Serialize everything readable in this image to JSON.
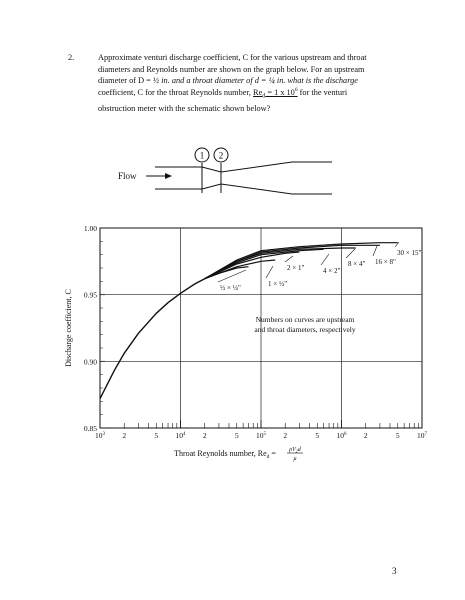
{
  "problem": {
    "number": "2.",
    "line1": "Approximate venturi discharge coefficient, C for the various upstream and throat",
    "line2": "diameters and Reynolds number are shown on the graph below.  For an upstream",
    "line3a": "diameter of D = ",
    "D_value": "½",
    "line3b": " in. and a throat diameter of d = ",
    "d_value": "¼",
    "line3c": " in. what is the discharge",
    "line4a": "coefficient, C for the throat Reynolds number, ",
    "Re_text": "Re",
    "Re_sub": "d",
    "Re_eq": " = 1 x 10",
    "Re_exp": "6",
    "line4b": " for the venturi",
    "line5": "obstruction meter with the schematic shown below?"
  },
  "schematic": {
    "flow_label": "Flow",
    "station1": "1",
    "station2": "2"
  },
  "chart_data": {
    "type": "line",
    "xscale": "log",
    "xlim": [
      1000,
      10000000
    ],
    "ylim": [
      0.85,
      1.0
    ],
    "ylabel": "Discharge coefficient, C",
    "xlabel": "Throat Reynolds number, Re",
    "xlabel_sub": "d",
    "xlabel_eq": " = ",
    "xlabel_numer": "ρV",
    "xlabel_numer_sub": "2",
    "xlabel_numer_tail": "d",
    "xlabel_denom": "μ",
    "y_ticks": [
      "0.85",
      "0.90",
      "0.95",
      "1.00"
    ],
    "x_ticks_major": [
      {
        "value": 1000,
        "base": "10",
        "exp": "3"
      },
      {
        "value": 10000,
        "base": "10",
        "exp": "4"
      },
      {
        "value": 100000,
        "base": "10",
        "exp": "5"
      },
      {
        "value": 1000000,
        "base": "10",
        "exp": "6"
      },
      {
        "value": 10000000,
        "base": "10",
        "exp": "7"
      }
    ],
    "x_ticks_minor_labeled": [
      {
        "value": 2000,
        "label": "2"
      },
      {
        "value": 5000,
        "label": "5"
      },
      {
        "value": 20000,
        "label": "2"
      },
      {
        "value": 50000,
        "label": "5"
      },
      {
        "value": 200000,
        "label": "2"
      },
      {
        "value": 500000,
        "label": "5"
      },
      {
        "value": 2000000,
        "label": "2"
      },
      {
        "value": 5000000,
        "label": "5"
      }
    ],
    "grid_x": [
      10000,
      100000,
      1000000
    ],
    "grid_y": [
      0.9,
      0.95
    ],
    "annotation": {
      "line1": "Numbers on curves are upstream",
      "line2": "and throat diameters, respectively"
    },
    "common_curve": {
      "x": [
        1000,
        1500,
        2000,
        3000,
        5000,
        7000,
        10000,
        15000,
        20000
      ],
      "y": [
        0.872,
        0.893,
        0.906,
        0.921,
        0.936,
        0.944,
        0.951,
        0.958,
        0.962
      ]
    },
    "series": [
      {
        "label": "½ × ¼\"",
        "x": [
          20000,
          30000,
          50000,
          70000
        ],
        "y": [
          0.962,
          0.966,
          0.97,
          0.971
        ]
      },
      {
        "label": "1 × ½\"",
        "x": [
          20000,
          50000,
          100000,
          150000
        ],
        "y": [
          0.962,
          0.971,
          0.975,
          0.976
        ]
      },
      {
        "label": "2 × 1\"",
        "x": [
          20000,
          50000,
          100000,
          200000,
          300000
        ],
        "y": [
          0.962,
          0.973,
          0.978,
          0.981,
          0.982
        ]
      },
      {
        "label": "4 × 2\"",
        "x": [
          20000,
          50000,
          100000,
          300000,
          600000
        ],
        "y": [
          0.962,
          0.974,
          0.98,
          0.983,
          0.984
        ]
      },
      {
        "label": "8 × 4\"",
        "x": [
          20000,
          50000,
          100000,
          300000,
          1000000,
          1500000
        ],
        "y": [
          0.962,
          0.975,
          0.981,
          0.984,
          0.985,
          0.985
        ]
      },
      {
        "label": "16 × 8\"",
        "x": [
          20000,
          50000,
          100000,
          300000,
          1000000,
          3000000
        ],
        "y": [
          0.962,
          0.975,
          0.982,
          0.985,
          0.987,
          0.987
        ]
      },
      {
        "label": "30 × 15\"",
        "x": [
          20000,
          50000,
          100000,
          300000,
          1000000,
          3000000,
          5000000
        ],
        "y": [
          0.962,
          0.976,
          0.983,
          0.986,
          0.988,
          0.989,
          0.989
        ]
      }
    ]
  },
  "page_number": "3"
}
